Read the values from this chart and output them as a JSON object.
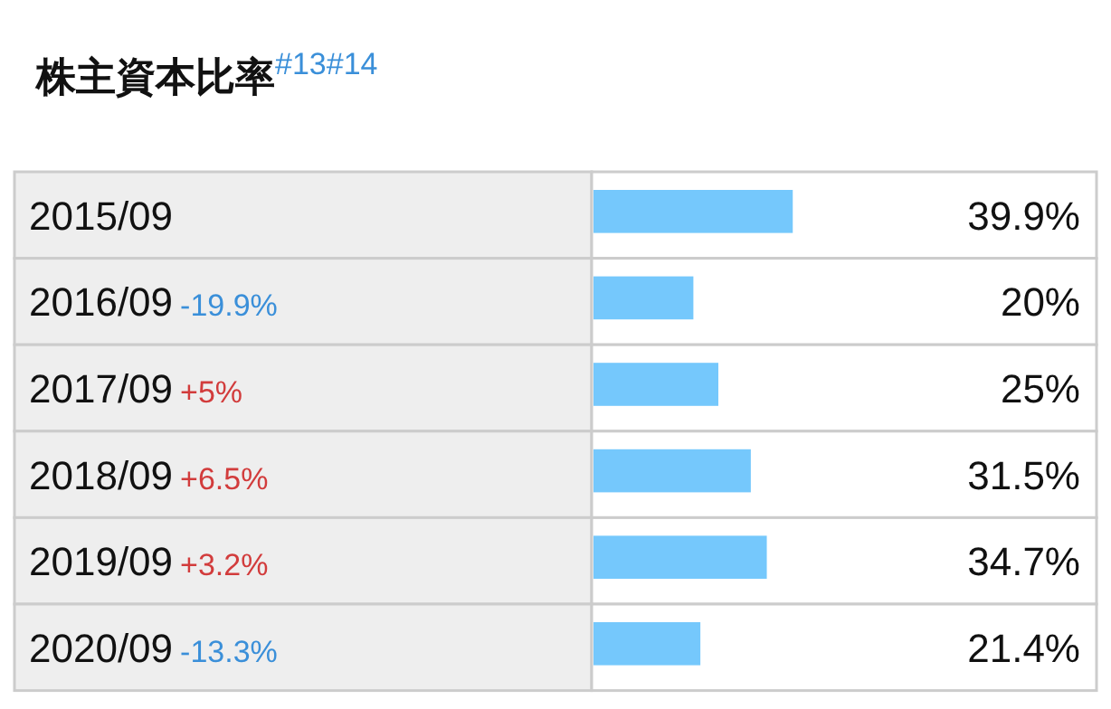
{
  "chart_data": {
    "type": "bar",
    "orientation": "horizontal",
    "title": "株主資本比率$^{#13#14}$",
    "color": "#75c8fc",
    "categories": [
      "2015/09",
      "2016/09",
      "2017/09",
      "2018/09",
      "2019/09",
      "2020/09"
    ],
    "values": [
      39.9,
      20,
      25,
      31.5,
      34.7,
      21.4
    ],
    "value_labels": [
      "39.9%",
      "20%",
      "25%",
      "31.5%",
      "34.7%",
      "21.4%"
    ],
    "annotations": [
      "-19.9%",
      "+5%",
      "+6.5%",
      "+3.2%",
      "-13.3%"
    ]
  }
}
